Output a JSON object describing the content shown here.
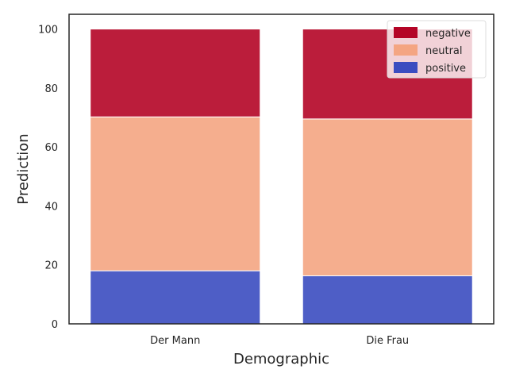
{
  "chart_data": {
    "type": "bar",
    "stacked": true,
    "title": "",
    "xlabel": "Demographic",
    "ylabel": "Prediction",
    "categories": [
      "Der Mann",
      "Die Frau"
    ],
    "series": [
      {
        "name": "positive",
        "values": [
          18.0,
          16.3
        ],
        "color": "#3b4cc0"
      },
      {
        "name": "neutral",
        "values": [
          52.2,
          53.2
        ],
        "color": "#f4a582"
      },
      {
        "name": "negative",
        "values": [
          29.8,
          30.5
        ],
        "color": "#b40426"
      }
    ],
    "ylim": [
      0,
      105
    ],
    "yticks": [
      0,
      20,
      40,
      60,
      80,
      100
    ],
    "grid": false,
    "legend": {
      "placement": "top-right",
      "entries": [
        "negative",
        "neutral",
        "positive"
      ]
    }
  }
}
